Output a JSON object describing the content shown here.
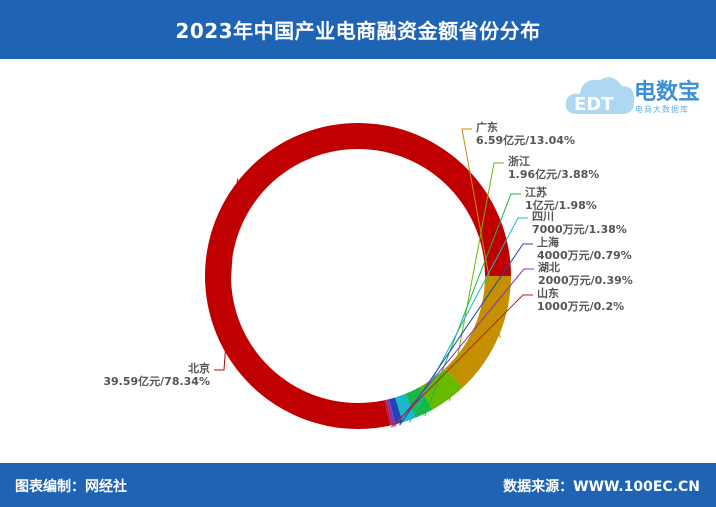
{
  "header": {
    "title": "2023年中国产业电商融资金额省份分布"
  },
  "logo": {
    "name": "电数宝",
    "subtitle": "电商大数据库",
    "mark": "EDT"
  },
  "footer": {
    "left": "图表编制：网经社",
    "right": "数据来源：WWW.100EC.CN"
  },
  "chart_data": {
    "type": "pie",
    "donut": true,
    "slices": [
      {
        "name": "北京",
        "amount": "39.59亿元",
        "percent": 78.34,
        "percent_label": "78.34%",
        "color": "#c00000"
      },
      {
        "name": "广东",
        "amount": "6.59亿元",
        "percent": 13.04,
        "percent_label": "13.04%",
        "color": "#c49000"
      },
      {
        "name": "浙江",
        "amount": "1.96亿元",
        "percent": 3.88,
        "percent_label": "3.88%",
        "color": "#66bb00"
      },
      {
        "name": "江苏",
        "amount": "1亿元",
        "percent": 1.98,
        "percent_label": "1.98%",
        "color": "#18b848"
      },
      {
        "name": "四川",
        "amount": "7000万元",
        "percent": 1.38,
        "percent_label": "1.38%",
        "color": "#1ab8c8"
      },
      {
        "name": "上海",
        "amount": "4000万元",
        "percent": 0.79,
        "percent_label": "0.79%",
        "color": "#2244b4"
      },
      {
        "name": "湖北",
        "amount": "2000万元",
        "percent": 0.39,
        "percent_label": "0.39%",
        "color": "#9030b0"
      },
      {
        "name": "山东",
        "amount": "1000万元",
        "percent": 0.2,
        "percent_label": "0.2%",
        "color": "#b02020"
      }
    ]
  }
}
